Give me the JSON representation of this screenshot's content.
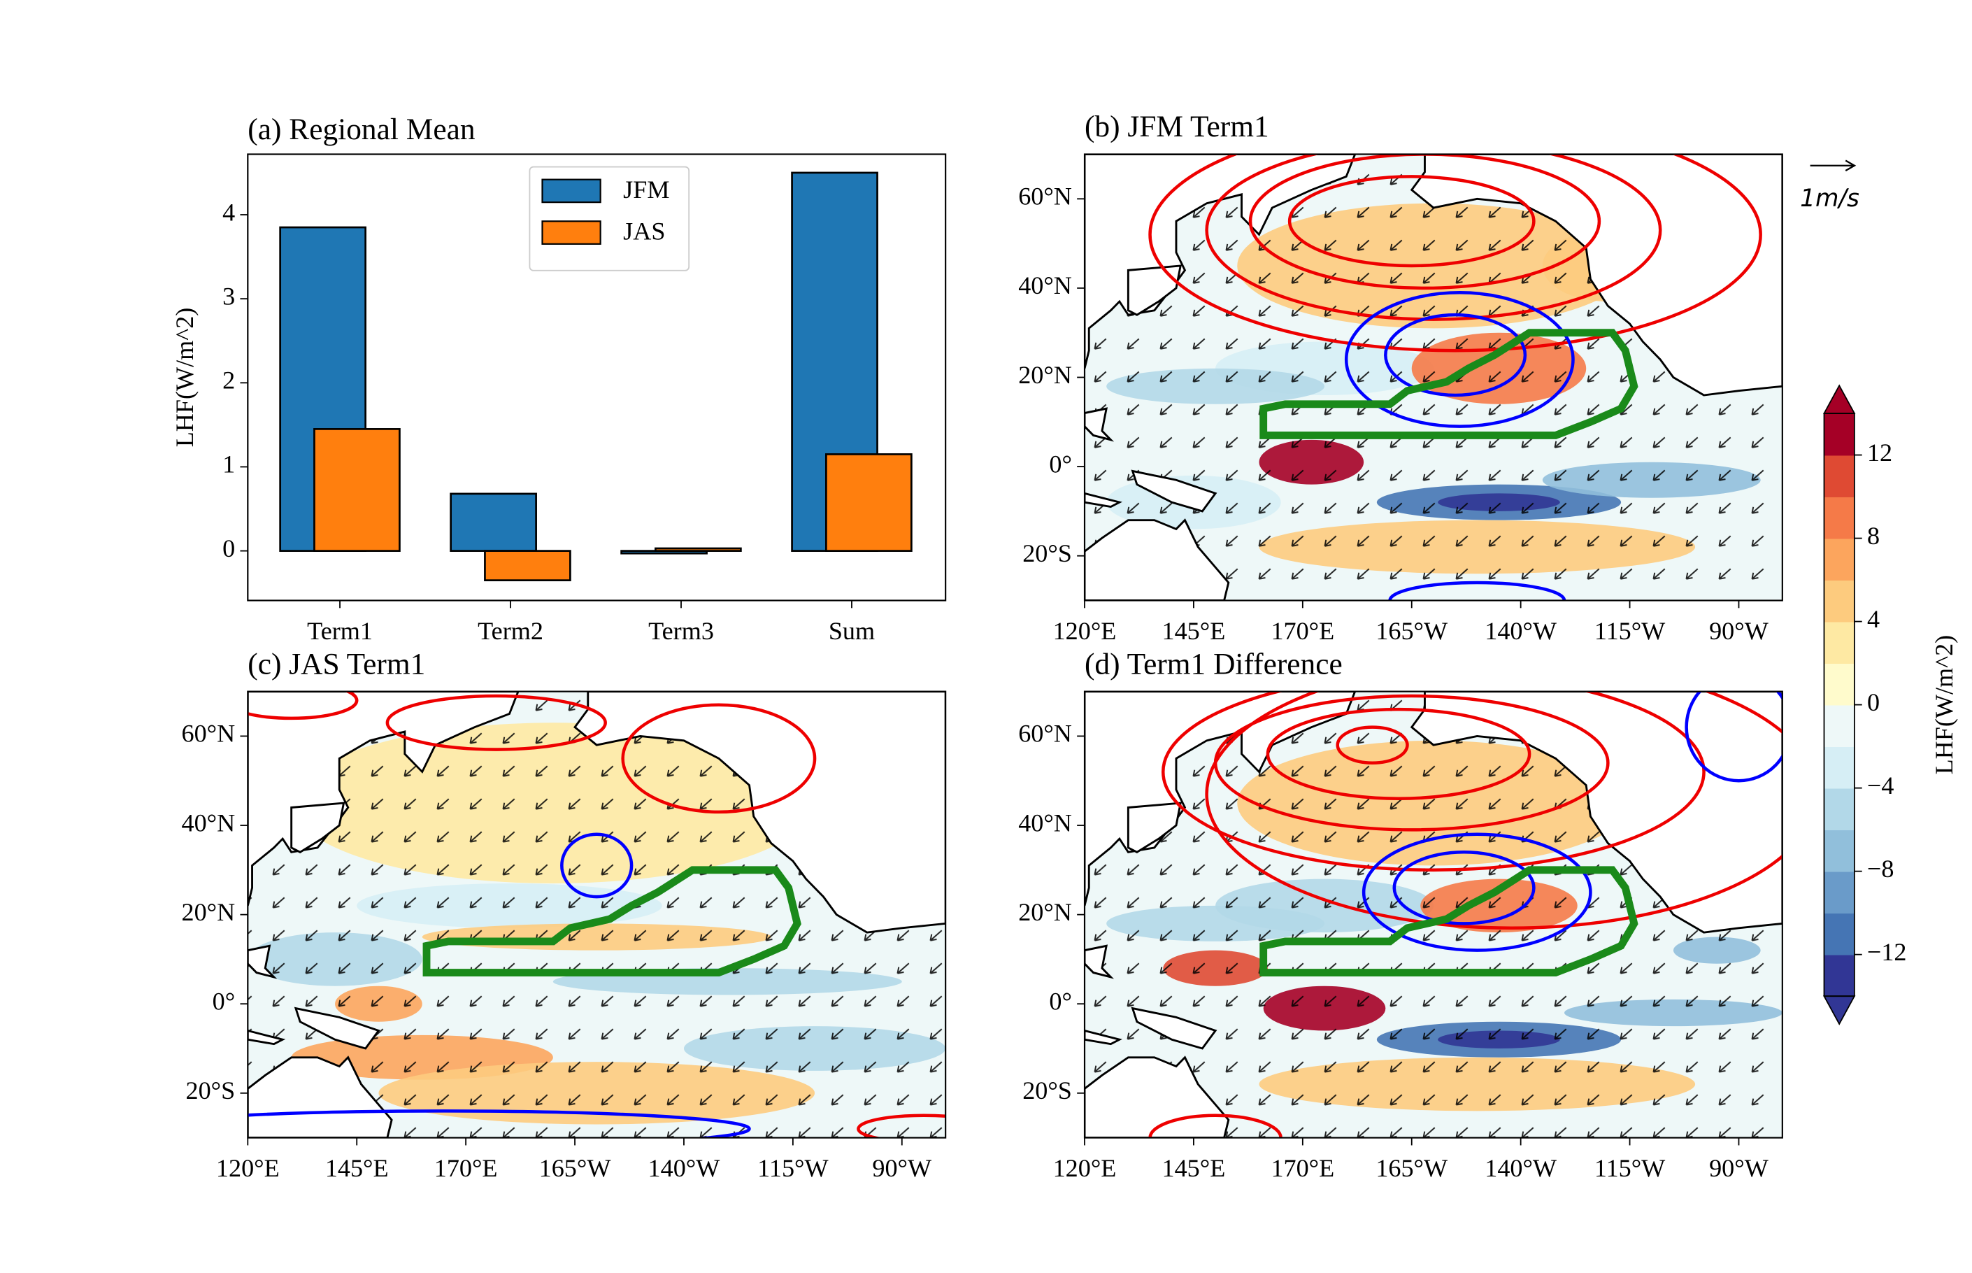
{
  "chart_data": [
    {
      "type": "bar",
      "title": "(a) Regional Mean",
      "ylabel": "LHF(W/m^2)",
      "categories": [
        "Term1",
        "Term2",
        "Term3",
        "Sum"
      ],
      "series": [
        {
          "name": "JFM",
          "color": "#1f77b4",
          "values": [
            3.85,
            0.68,
            -0.03,
            4.5
          ]
        },
        {
          "name": "JAS",
          "color": "#ff7f0e",
          "values": [
            1.45,
            -0.35,
            0.03,
            1.15
          ]
        }
      ],
      "ylim": [
        -0.59,
        4.72
      ],
      "yticks": [
        0,
        1,
        2,
        3,
        4
      ],
      "legend": "upper center",
      "edgecolor": "#000000"
    },
    {
      "type": "map",
      "title": "(b) JFM Term1",
      "quiver_key": "1m/s",
      "xlim": [
        120,
        280
      ],
      "ylim": [
        -30,
        70
      ],
      "xticks": [
        {
          "value": 120,
          "label": "120°E"
        },
        {
          "value": 145,
          "label": "145°E"
        },
        {
          "value": 170,
          "label": "170°E"
        },
        {
          "value": 195,
          "label": "165°W"
        },
        {
          "value": 220,
          "label": "140°W"
        },
        {
          "value": 245,
          "label": "115°W"
        },
        {
          "value": 270,
          "label": "90°W"
        }
      ],
      "yticks": [
        {
          "value": -20,
          "label": "20°S"
        },
        {
          "value": 0,
          "label": "0°"
        },
        {
          "value": 20,
          "label": "20°N"
        },
        {
          "value": 40,
          "label": "40°N"
        },
        {
          "value": 60,
          "label": "60°N"
        }
      ]
    },
    {
      "type": "map",
      "title": "(c) JAS Term1",
      "xlim": [
        120,
        280
      ],
      "ylim": [
        -30,
        70
      ],
      "xticks": [
        {
          "value": 120,
          "label": "120°E"
        },
        {
          "value": 145,
          "label": "145°E"
        },
        {
          "value": 170,
          "label": "170°E"
        },
        {
          "value": 195,
          "label": "165°W"
        },
        {
          "value": 220,
          "label": "140°W"
        },
        {
          "value": 245,
          "label": "115°W"
        },
        {
          "value": 270,
          "label": "90°W"
        }
      ],
      "yticks": [
        {
          "value": -20,
          "label": "20°S"
        },
        {
          "value": 0,
          "label": "0°"
        },
        {
          "value": 20,
          "label": "20°N"
        },
        {
          "value": 40,
          "label": "40°N"
        },
        {
          "value": 60,
          "label": "60°N"
        }
      ]
    },
    {
      "type": "map",
      "title": "(d) Term1 Difference",
      "xlim": [
        120,
        280
      ],
      "ylim": [
        -30,
        70
      ],
      "xticks": [
        {
          "value": 120,
          "label": "120°E"
        },
        {
          "value": 145,
          "label": "145°E"
        },
        {
          "value": 170,
          "label": "170°E"
        },
        {
          "value": 195,
          "label": "165°W"
        },
        {
          "value": 220,
          "label": "140°W"
        },
        {
          "value": 245,
          "label": "115°W"
        },
        {
          "value": 270,
          "label": "90°W"
        }
      ],
      "yticks": [
        {
          "value": -20,
          "label": "20°S"
        },
        {
          "value": 0,
          "label": "0°"
        },
        {
          "value": 20,
          "label": "20°N"
        },
        {
          "value": 40,
          "label": "40°N"
        },
        {
          "value": 60,
          "label": "60°N"
        }
      ]
    },
    {
      "type": "colorbar",
      "label": "LHF(W/m^2)",
      "vlim": [
        -14,
        14
      ],
      "extend": "both",
      "ticks": [
        {
          "value": -12,
          "label": "−12"
        },
        {
          "value": -8,
          "label": "−8"
        },
        {
          "value": -4,
          "label": "−4"
        },
        0,
        4,
        8,
        12
      ],
      "colors": [
        "#313695",
        "#4575b4",
        "#6a9bc9",
        "#91bfdb",
        "#b2d8e8",
        "#d6eef5",
        "#eef8f8",
        "#fffbcc",
        "#fee9a3",
        "#fdcb7e",
        "#fca55d",
        "#f57a48",
        "#df4a33",
        "#a50026"
      ]
    }
  ]
}
